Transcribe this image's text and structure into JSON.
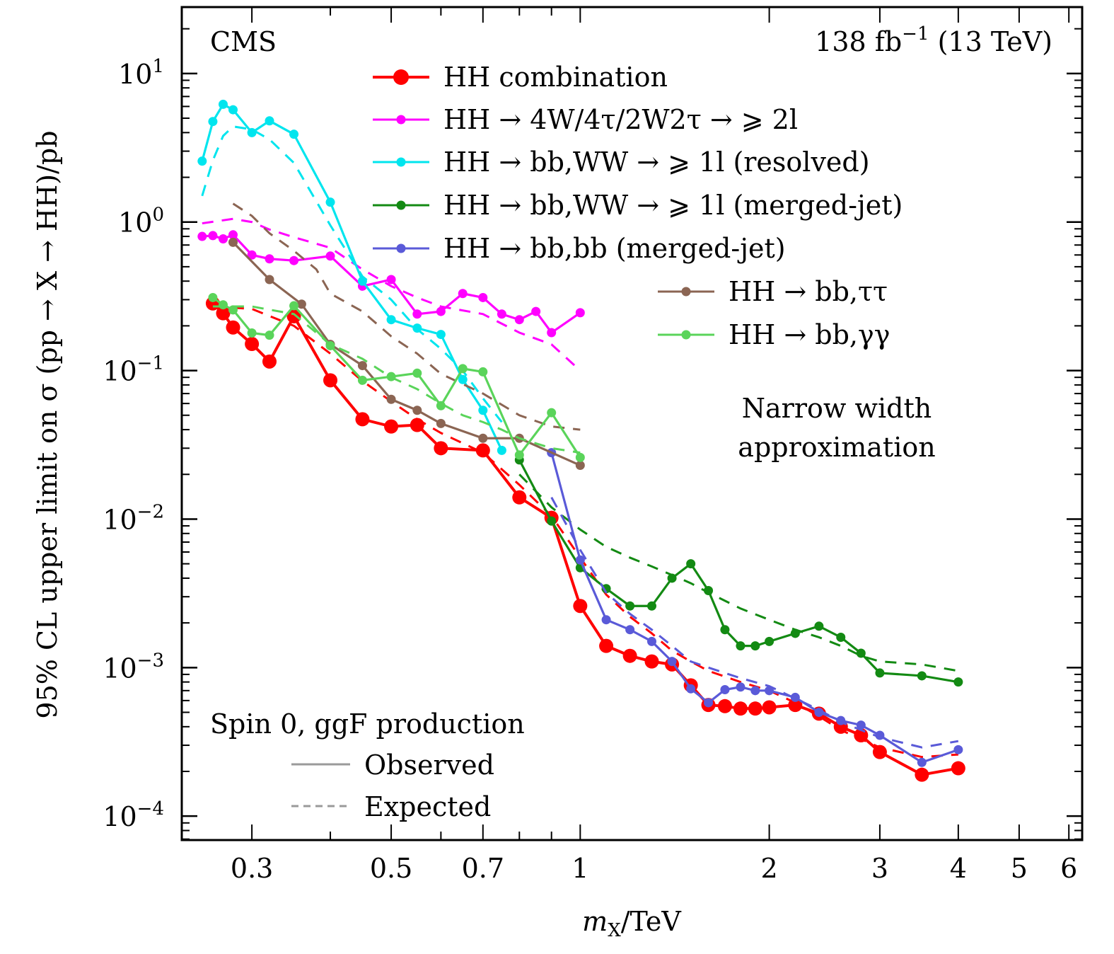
{
  "chart_data": {
    "type": "line",
    "title": "",
    "experiment_label": "CMS",
    "lumi_label": "138 fb⁻¹ (13 TeV)",
    "xlabel": "m_X/TeV",
    "xlabel_main": "m",
    "xlabel_sub": "X",
    "xlabel_unit": "/TeV",
    "ylabel": "95% CL upper limit on σ (pp → X → HH)/pb",
    "xscale": "log",
    "yscale": "log",
    "xlim": [
      0.232,
      6.3
    ],
    "ylim": [
      6.9e-05,
      28
    ],
    "x_ticks": [
      {
        "value": 0.3,
        "label": "0.3"
      },
      {
        "value": 0.5,
        "label": "0.5"
      },
      {
        "value": 0.7,
        "label": "0.7"
      },
      {
        "value": 1,
        "label": "1"
      },
      {
        "value": 2,
        "label": "2"
      },
      {
        "value": 3,
        "label": "3"
      },
      {
        "value": 4,
        "label": "4"
      },
      {
        "value": 5,
        "label": "5"
      },
      {
        "value": 6,
        "label": "6"
      }
    ],
    "x_minor_ticks": [
      0.4,
      0.6,
      0.8,
      0.9
    ],
    "y_ticks": [
      {
        "value": 10,
        "base": "10",
        "exp": "1"
      },
      {
        "value": 1,
        "base": "10",
        "exp": "0"
      },
      {
        "value": 0.1,
        "base": "10",
        "exp": "−1"
      },
      {
        "value": 0.01,
        "base": "10",
        "exp": "−2"
      },
      {
        "value": 0.001,
        "base": "10",
        "exp": "−3"
      },
      {
        "value": 0.0001,
        "base": "10",
        "exp": "−4"
      }
    ],
    "grid": false,
    "legend_placement": "top-right",
    "series": [
      {
        "name": "HH combination",
        "color": "#ff0000",
        "marker": "large",
        "observed": {
          "x": [
            0.26,
            0.27,
            0.28,
            0.3,
            0.32,
            0.35,
            0.4,
            0.45,
            0.5,
            0.55,
            0.6,
            0.7,
            0.8,
            0.9,
            1.0,
            1.1,
            1.2,
            1.3,
            1.4,
            1.5,
            1.6,
            1.7,
            1.8,
            1.9,
            2.0,
            2.2,
            2.4,
            2.6,
            2.8,
            3.0,
            3.5,
            4.0
          ],
          "y": [
            0.283,
            0.243,
            0.195,
            0.151,
            0.115,
            0.232,
            0.086,
            0.047,
            0.042,
            0.043,
            0.03,
            0.029,
            0.014,
            0.0102,
            0.0026,
            0.0014,
            0.0012,
            0.0011,
            0.00105,
            0.00076,
            0.00056,
            0.00055,
            0.00053,
            0.00053,
            0.00054,
            0.00056,
            0.00049,
            0.0004,
            0.00035,
            0.00027,
            0.00019,
            0.00021
          ]
        },
        "expected": {
          "x": [
            0.26,
            0.3,
            0.35,
            0.4,
            0.45,
            0.5,
            0.55,
            0.6,
            0.7,
            0.8,
            0.9,
            1.0,
            1.1,
            1.2,
            1.3,
            1.4,
            1.5,
            1.6,
            1.8,
            2.0,
            2.2,
            2.4,
            2.6,
            2.8,
            3.0,
            3.5,
            4.0
          ],
          "y": [
            0.27,
            0.26,
            0.2,
            0.13,
            0.085,
            0.062,
            0.047,
            0.038,
            0.028,
            0.017,
            0.0105,
            0.0055,
            0.0031,
            0.0022,
            0.0017,
            0.0013,
            0.0011,
            0.00095,
            0.0008,
            0.0007,
            0.00058,
            0.00047,
            0.00038,
            0.00033,
            0.00029,
            0.00025,
            0.00026
          ]
        }
      },
      {
        "name": "HH → 4W/4τ/2W2τ → ⩾ 2l",
        "color": "#ff00ff",
        "marker": "small",
        "observed": {
          "x": [
            0.25,
            0.26,
            0.27,
            0.28,
            0.3,
            0.32,
            0.35,
            0.4,
            0.45,
            0.5,
            0.55,
            0.6,
            0.65,
            0.7,
            0.75,
            0.8,
            0.85,
            0.9,
            1.0
          ],
          "y": [
            0.8,
            0.81,
            0.77,
            0.82,
            0.6,
            0.565,
            0.55,
            0.59,
            0.37,
            0.41,
            0.24,
            0.25,
            0.33,
            0.31,
            0.24,
            0.22,
            0.25,
            0.18,
            0.245
          ]
        },
        "expected": {
          "x": [
            0.25,
            0.28,
            0.3,
            0.32,
            0.35,
            0.4,
            0.45,
            0.5,
            0.55,
            0.6,
            0.7,
            0.8,
            0.9,
            1.0
          ],
          "y": [
            0.98,
            1.05,
            1.0,
            0.89,
            0.79,
            0.67,
            0.48,
            0.37,
            0.31,
            0.27,
            0.24,
            0.18,
            0.15,
            0.1
          ]
        }
      },
      {
        "name": "HH → bb,WW → ⩾ 1l (resolved)",
        "color": "#00e5ee",
        "marker": "small",
        "observed": {
          "x": [
            0.25,
            0.26,
            0.27,
            0.28,
            0.3,
            0.32,
            0.35,
            0.4,
            0.45,
            0.5,
            0.55,
            0.6,
            0.65,
            0.7,
            0.75
          ],
          "y": [
            2.57,
            4.75,
            6.2,
            5.7,
            4.0,
            4.8,
            3.9,
            1.36,
            0.4,
            0.22,
            0.193,
            0.175,
            0.087,
            0.054,
            0.029
          ]
        },
        "expected": {
          "x": [
            0.25,
            0.26,
            0.27,
            0.28,
            0.3,
            0.32,
            0.35,
            0.4,
            0.45,
            0.5,
            0.55,
            0.6,
            0.65,
            0.7,
            0.75
          ],
          "y": [
            1.5,
            2.6,
            3.8,
            4.4,
            4.2,
            3.6,
            2.5,
            0.95,
            0.43,
            0.3,
            0.19,
            0.14,
            0.1,
            0.065,
            0.045
          ]
        }
      },
      {
        "name": "HH → bb,WW → ⩾ 1l (merged-jet)",
        "color": "#138a13",
        "marker": "small",
        "observed": {
          "x": [
            0.8,
            0.9,
            1.0,
            1.1,
            1.2,
            1.3,
            1.4,
            1.5,
            1.6,
            1.7,
            1.8,
            1.9,
            2.0,
            2.2,
            2.4,
            2.6,
            2.8,
            3.0,
            3.5,
            4.0
          ],
          "y": [
            0.025,
            0.0097,
            0.0047,
            0.0034,
            0.0026,
            0.0026,
            0.004,
            0.005,
            0.0033,
            0.0018,
            0.0014,
            0.0014,
            0.0015,
            0.0017,
            0.0019,
            0.0016,
            0.00125,
            0.00092,
            0.00088,
            0.0008
          ]
        },
        "expected": {
          "x": [
            0.8,
            0.9,
            1.0,
            1.1,
            1.2,
            1.3,
            1.4,
            1.5,
            1.6,
            1.8,
            2.0,
            2.2,
            2.4,
            2.6,
            2.8,
            3.0,
            3.5,
            4.0
          ],
          "y": [
            0.02,
            0.012,
            0.0085,
            0.0065,
            0.0055,
            0.0048,
            0.0042,
            0.0037,
            0.0032,
            0.0025,
            0.0021,
            0.0018,
            0.0016,
            0.0014,
            0.0012,
            0.0011,
            0.00105,
            0.00095
          ]
        }
      },
      {
        "name": "HH → bb,bb (merged-jet)",
        "color": "#5a5ad8",
        "marker": "small",
        "observed": {
          "x": [
            0.9,
            1.0,
            1.1,
            1.2,
            1.3,
            1.4,
            1.5,
            1.6,
            1.7,
            1.8,
            1.9,
            2.0,
            2.2,
            2.4,
            2.6,
            2.8,
            3.0,
            3.5,
            4.0
          ],
          "y": [
            0.028,
            0.0053,
            0.0021,
            0.0018,
            0.0015,
            0.0011,
            0.00072,
            0.00058,
            0.00071,
            0.00074,
            0.0007,
            0.0007,
            0.00063,
            0.0005,
            0.00044,
            0.00041,
            0.00035,
            0.00023,
            0.00028
          ]
        },
        "expected": {
          "x": [
            0.9,
            1.0,
            1.1,
            1.2,
            1.3,
            1.4,
            1.5,
            1.6,
            1.8,
            2.0,
            2.2,
            2.4,
            2.6,
            2.8,
            3.0,
            3.5,
            4.0
          ],
          "y": [
            0.014,
            0.0062,
            0.0032,
            0.0023,
            0.0018,
            0.0014,
            0.0011,
            0.001,
            0.00085,
            0.00075,
            0.00062,
            0.00052,
            0.00043,
            0.00038,
            0.00034,
            0.00029,
            0.00032
          ]
        }
      },
      {
        "name": "HH → bb,ττ",
        "color": "#8b6553",
        "marker": "small",
        "observed": {
          "x": [
            0.28,
            0.32,
            0.36,
            0.4,
            0.45,
            0.5,
            0.55,
            0.6,
            0.7,
            0.8,
            1.0
          ],
          "y": [
            0.73,
            0.41,
            0.28,
            0.15,
            0.108,
            0.064,
            0.054,
            0.044,
            0.035,
            0.035,
            0.023
          ]
        },
        "expected": {
          "x": [
            0.28,
            0.3,
            0.32,
            0.35,
            0.38,
            0.4,
            0.45,
            0.5,
            0.55,
            0.6,
            0.7,
            0.8,
            0.9,
            1.0
          ],
          "y": [
            1.33,
            1.1,
            0.84,
            0.64,
            0.48,
            0.33,
            0.25,
            0.17,
            0.13,
            0.095,
            0.07,
            0.05,
            0.042,
            0.04
          ]
        }
      },
      {
        "name": "HH → bb,γγ",
        "color": "#5ad45a",
        "marker": "small",
        "observed": {
          "x": [
            0.26,
            0.27,
            0.28,
            0.3,
            0.32,
            0.35,
            0.4,
            0.45,
            0.5,
            0.55,
            0.6,
            0.65,
            0.7,
            0.8,
            0.9,
            1.0
          ],
          "y": [
            0.31,
            0.277,
            0.256,
            0.179,
            0.173,
            0.273,
            0.147,
            0.086,
            0.091,
            0.096,
            0.058,
            0.103,
            0.098,
            0.027,
            0.052,
            0.026
          ]
        },
        "expected": {
          "x": [
            0.26,
            0.3,
            0.35,
            0.4,
            0.45,
            0.5,
            0.55,
            0.6,
            0.65,
            0.7,
            0.75,
            0.8,
            0.9,
            1.0
          ],
          "y": [
            0.27,
            0.27,
            0.24,
            0.15,
            0.12,
            0.09,
            0.075,
            0.06,
            0.05,
            0.045,
            0.04,
            0.035,
            0.03,
            0.028
          ]
        }
      }
    ],
    "annotations": {
      "narrow_width_line1": "Narrow width",
      "narrow_width_line2": "approximation",
      "production": "Spin 0, ggF production",
      "style_legend": [
        {
          "label": "Observed",
          "style": "solid"
        },
        {
          "label": "Expected",
          "style": "dashed"
        }
      ],
      "style_legend_color": "#9a9a9a"
    }
  }
}
